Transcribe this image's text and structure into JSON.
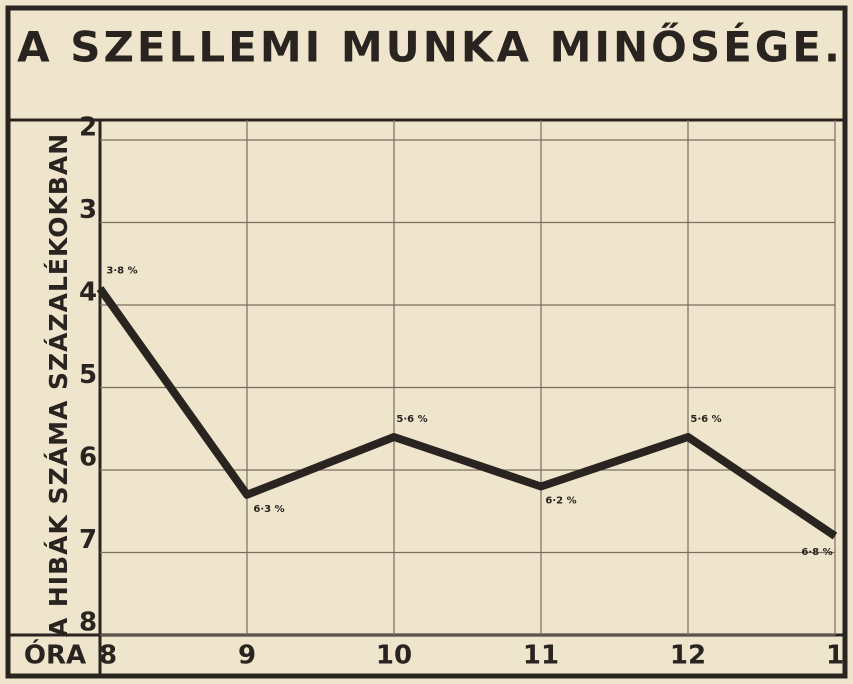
{
  "chart_data": {
    "type": "line",
    "title": "A SZELLEMI MUNKA MINŐSÉGE.",
    "y_label": "A HIBÁK SZÁMA SZÁZALÉKOKBAN",
    "x_label": "ÓRA",
    "categories": [
      "8",
      "9",
      "10",
      "11",
      "12",
      "1"
    ],
    "values": [
      3.8,
      6.3,
      5.6,
      6.2,
      5.6,
      6.8
    ],
    "value_labels": [
      "3·8 %",
      "6·3 %",
      "5·6 %",
      "6·2 %",
      "5·6 %",
      "6·8 %"
    ],
    "color": "#2a2420",
    "ylim": [
      2,
      8
    ],
    "yticks": [
      2,
      3,
      4,
      5,
      6,
      7,
      8
    ],
    "y_inverted": true,
    "grid": true
  }
}
